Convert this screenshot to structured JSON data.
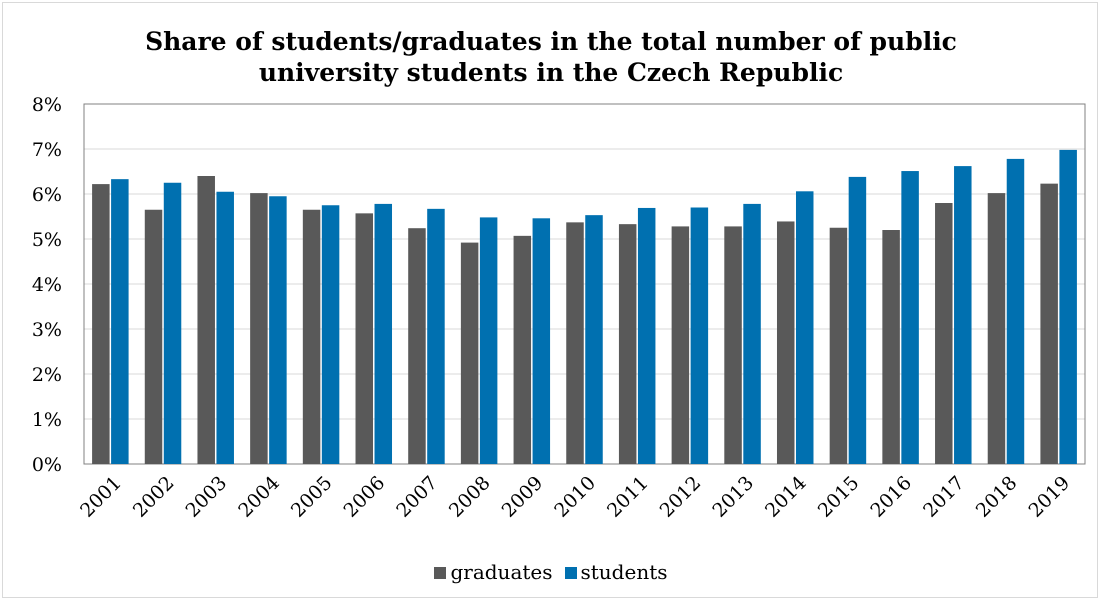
{
  "chart_data": {
    "type": "bar",
    "title": "Share of students/graduates in the total number of public\nuniversity students in the Czech Republic",
    "xlabel": "",
    "ylabel": "",
    "categories": [
      "2001",
      "2002",
      "2003",
      "2004",
      "2005",
      "2006",
      "2007",
      "2008",
      "2009",
      "2010",
      "2011",
      "2012",
      "2013",
      "2014",
      "2015",
      "2016",
      "2017",
      "2018",
      "2019"
    ],
    "series": [
      {
        "name": "graduates",
        "color": "#595959",
        "values": [
          6.22,
          5.65,
          6.4,
          6.02,
          5.65,
          5.57,
          5.24,
          4.92,
          5.07,
          5.37,
          5.33,
          5.28,
          5.28,
          5.39,
          5.25,
          5.2,
          5.8,
          6.02,
          6.23
        ]
      },
      {
        "name": "students",
        "color": "#0070b0",
        "values": [
          6.33,
          6.25,
          6.05,
          5.95,
          5.75,
          5.78,
          5.67,
          5.48,
          5.46,
          5.53,
          5.69,
          5.7,
          5.78,
          6.06,
          6.38,
          6.51,
          6.62,
          6.78,
          6.98
        ]
      }
    ],
    "ylim": [
      0,
      8
    ],
    "yticks": [
      "0%",
      "1%",
      "2%",
      "3%",
      "4%",
      "5%",
      "6%",
      "7%",
      "8%"
    ],
    "grid": true,
    "legend": "bottom"
  }
}
